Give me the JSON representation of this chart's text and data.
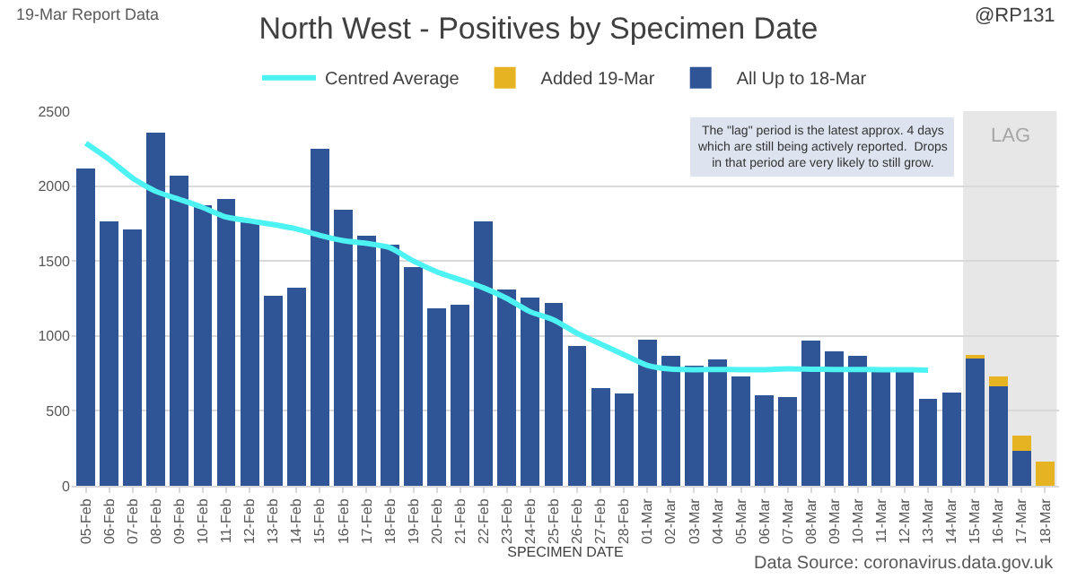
{
  "chart_data": {
    "type": "bar",
    "title": "North West - Positives by Specimen Date",
    "xlabel": "SPECIMEN DATE",
    "categories": [
      "05-Feb",
      "06-Feb",
      "07-Feb",
      "08-Feb",
      "09-Feb",
      "10-Feb",
      "11-Feb",
      "12-Feb",
      "13-Feb",
      "14-Feb",
      "15-Feb",
      "16-Feb",
      "17-Feb",
      "18-Feb",
      "19-Feb",
      "20-Feb",
      "21-Feb",
      "22-Feb",
      "23-Feb",
      "24-Feb",
      "25-Feb",
      "26-Feb",
      "27-Feb",
      "28-Feb",
      "01-Mar",
      "02-Mar",
      "03-Mar",
      "04-Mar",
      "05-Mar",
      "06-Mar",
      "07-Mar",
      "08-Mar",
      "09-Mar",
      "10-Mar",
      "11-Mar",
      "12-Mar",
      "13-Mar",
      "14-Mar",
      "15-Mar",
      "16-Mar",
      "17-Mar",
      "18-Mar"
    ],
    "stacked": true,
    "series": [
      {
        "name": "All Up to 18-Mar",
        "color": "#2f5597",
        "values": [
          2118,
          1764,
          1711,
          2357,
          2068,
          1875,
          1911,
          1761,
          1268,
          1321,
          2250,
          1843,
          1668,
          1607,
          1457,
          1186,
          1207,
          1764,
          1311,
          1257,
          1221,
          936,
          650,
          618,
          975,
          868,
          804,
          846,
          732,
          607,
          593,
          971,
          900,
          868,
          764,
          757,
          579,
          621,
          854,
          661,
          232,
          null
        ]
      },
      {
        "name": "Added 19-Mar",
        "color": "#e6b422",
        "values": [
          null,
          null,
          null,
          null,
          null,
          null,
          null,
          null,
          null,
          null,
          null,
          null,
          null,
          null,
          null,
          null,
          null,
          null,
          null,
          null,
          null,
          null,
          null,
          null,
          null,
          null,
          null,
          null,
          null,
          null,
          null,
          null,
          null,
          null,
          null,
          null,
          null,
          null,
          21,
          71,
          104,
          164
        ]
      },
      {
        "name": "Centred Average",
        "type": "line",
        "color": "#4df2f2",
        "values": [
          2286,
          2178,
          2053,
          1964,
          1911,
          1857,
          1793,
          1768,
          1743,
          1714,
          1671,
          1636,
          1618,
          1589,
          1500,
          1428,
          1375,
          1321,
          1250,
          1161,
          1107,
          1018,
          946,
          875,
          804,
          779,
          775,
          776,
          775,
          775,
          780,
          778,
          776,
          776,
          775,
          775,
          772,
          null,
          null,
          null,
          null,
          null
        ]
      }
    ],
    "ylim": [
      0,
      2500
    ],
    "yticks": [
      0,
      500,
      1000,
      1500,
      2000,
      2500
    ],
    "grid": "y",
    "legend": "top",
    "bands": [
      {
        "axis": "x",
        "from": "15-Mar",
        "to": "18-Mar",
        "label": "LAG",
        "color": "#e7e7e7"
      }
    ],
    "annotations": [
      "19-Mar Report Data",
      "@RP131",
      "The \"lag\" period is the latest approx. 4 days\nwhich are still being actively reported.  Drops\nin that period are very likely to still grow.",
      "Data Source: coronavirus.data.gov.uk"
    ]
  }
}
